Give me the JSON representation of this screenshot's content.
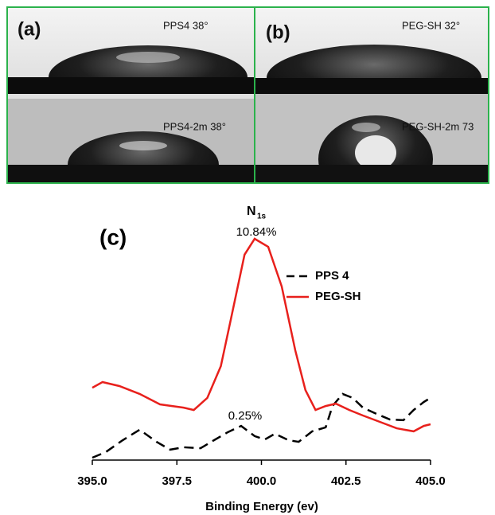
{
  "panels": [
    {
      "label": "(a)",
      "top_caption": "PPS4  38°",
      "bottom_caption": "PPS4-2m 38°"
    },
    {
      "label": "(b)",
      "top_caption": "PEG-SH 32°",
      "bottom_caption": "PEG-SH-2m 73"
    }
  ],
  "chart_data": {
    "type": "line",
    "panel_label": "(c)",
    "title": "N",
    "title_subscript": "1s",
    "x_label": "Binding Energy (ev)",
    "annotations": [
      "10.84%",
      "0.25%"
    ],
    "xlim": [
      395,
      405
    ],
    "xticks": [
      {
        "value": 395,
        "label": "395.0"
      },
      {
        "value": 397.5,
        "label": "397.5"
      },
      {
        "value": 400,
        "label": "400.0"
      },
      {
        "value": 402.5,
        "label": "402.5"
      },
      {
        "value": 405,
        "label": "405.0"
      }
    ],
    "ylim": [
      0,
      100
    ],
    "legend": "top-right",
    "series": [
      {
        "name": "PPS 4",
        "color": "#000000",
        "dashed": true,
        "x": [
          395.0,
          395.4,
          395.9,
          396.4,
          396.9,
          397.3,
          397.7,
          398.2,
          398.6,
          399.0,
          399.4,
          399.8,
          400.1,
          400.4,
          400.8,
          401.1,
          401.5,
          401.9,
          402.1,
          402.4,
          402.7,
          403.0,
          403.4,
          403.8,
          404.2,
          404.5,
          404.8,
          405.0
        ],
        "values": [
          1.0,
          3.4,
          8.4,
          12.8,
          7.7,
          4.4,
          5.4,
          5.0,
          8.4,
          11.7,
          14.4,
          10.1,
          8.7,
          11.1,
          8.4,
          7.7,
          12.1,
          13.8,
          22.8,
          27.9,
          26.2,
          22.1,
          19.5,
          17.1,
          16.8,
          21.1,
          24.5,
          26.2
        ]
      },
      {
        "name": "PEG-SH",
        "color": "#e8201c",
        "dashed": false,
        "x": [
          395.0,
          395.3,
          395.8,
          396.4,
          397.0,
          397.7,
          398.0,
          398.4,
          398.8,
          399.1,
          399.5,
          399.8,
          400.2,
          400.6,
          401.0,
          401.3,
          401.6,
          401.9,
          402.2,
          402.6,
          403.0,
          403.5,
          404.0,
          404.5,
          404.8,
          405.0
        ],
        "values": [
          30.5,
          32.9,
          31.2,
          27.9,
          23.5,
          22.1,
          21.1,
          26.2,
          39.6,
          59.7,
          86.6,
          93.3,
          89.9,
          73.2,
          46.3,
          29.5,
          21.1,
          22.8,
          23.8,
          21.1,
          18.8,
          16.1,
          13.4,
          12.1,
          14.4,
          15.1
        ]
      }
    ]
  }
}
